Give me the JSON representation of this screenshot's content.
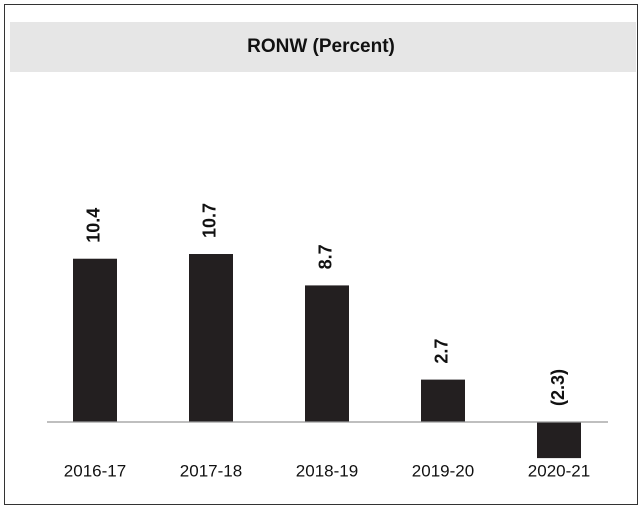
{
  "chart_data": {
    "type": "bar",
    "title": "RONW (Percent)",
    "categories": [
      "2016-17",
      "2017-18",
      "2018-19",
      "2019-20",
      "2020-21"
    ],
    "values": [
      10.4,
      10.7,
      8.7,
      2.7,
      -2.3
    ],
    "value_labels": [
      "10.4",
      "10.7",
      "8.7",
      "2.7",
      "(2.3)"
    ],
    "color": "#231f20",
    "ylim": [
      -4,
      14
    ]
  }
}
